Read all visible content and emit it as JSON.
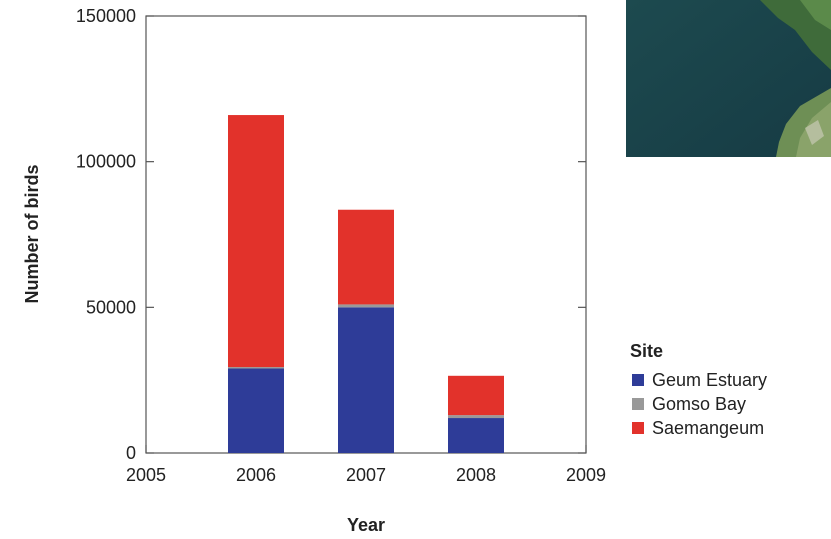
{
  "chart_data": {
    "type": "bar",
    "stacked": true,
    "categories": [
      "2006",
      "2007",
      "2008"
    ],
    "x_ticks": [
      "2005",
      "2006",
      "2007",
      "2008",
      "2009"
    ],
    "xlim": [
      2005,
      2009
    ],
    "y_ticks": [
      "0",
      "50000",
      "100000",
      "150000"
    ],
    "ylim": [
      0,
      150000
    ],
    "xlabel": "Year",
    "ylabel": "Number of birds",
    "grid": false,
    "legend": {
      "title": "Site",
      "placement": "right"
    },
    "series": [
      {
        "name": "Geum Estuary",
        "color": "#2e3c98",
        "values": [
          29000,
          50000,
          12000
        ]
      },
      {
        "name": "Gomso Bay",
        "color": "#999999",
        "values": [
          500,
          1000,
          1000
        ]
      },
      {
        "name": "Saemangeum",
        "color": "#e2322b",
        "values": [
          86500,
          32500,
          13500
        ]
      }
    ]
  },
  "map_inset": {
    "icon": "satellite-map-photo"
  }
}
